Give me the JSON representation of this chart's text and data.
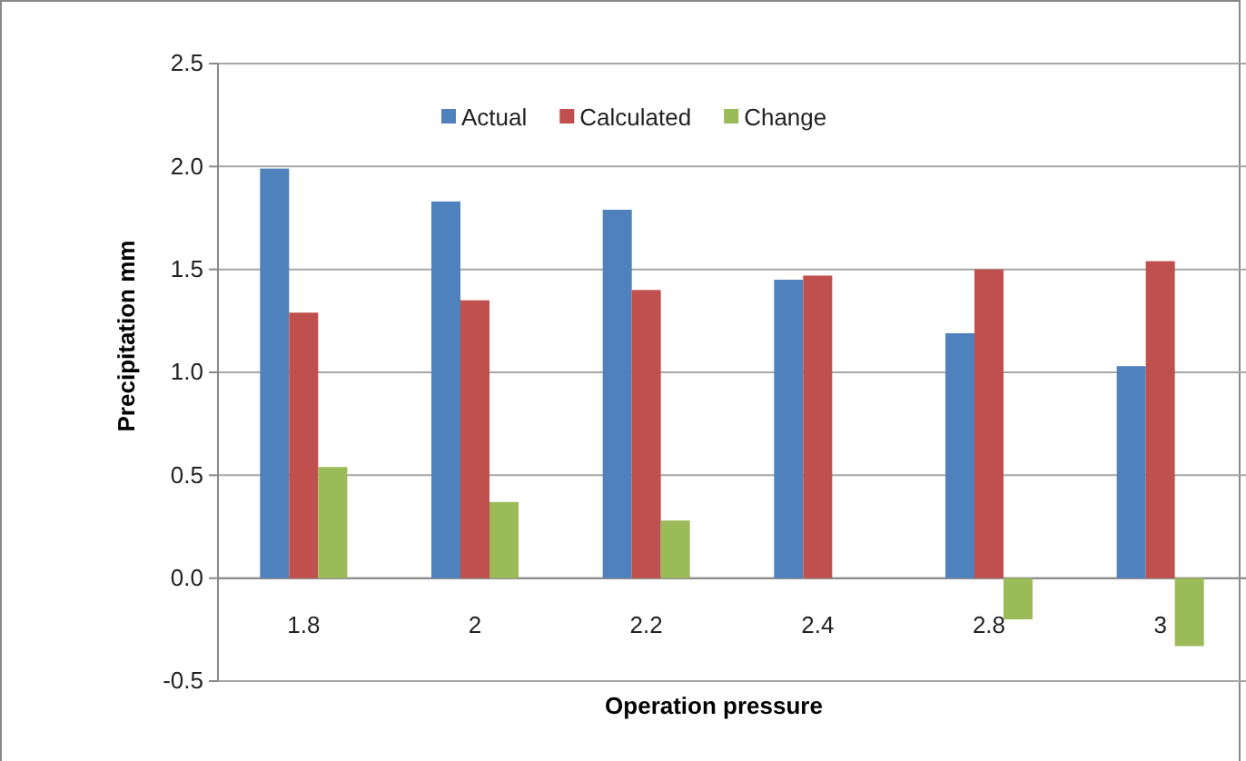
{
  "chart_data": {
    "type": "bar",
    "xlabel": "Operation pressure",
    "ylabel": "Precipitation mm",
    "categories": [
      "1.8",
      "2",
      "2.2",
      "2.4",
      "2.8",
      "3"
    ],
    "series": [
      {
        "name": "Actual",
        "color": "#4f81bd",
        "values": [
          1.99,
          1.83,
          1.79,
          1.45,
          1.19,
          1.03
        ]
      },
      {
        "name": "Calculated",
        "color": "#c0504d",
        "values": [
          1.29,
          1.35,
          1.4,
          1.47,
          1.5,
          1.54
        ]
      },
      {
        "name": "Change",
        "color": "#9bbb59",
        "values": [
          0.54,
          0.37,
          0.28,
          0,
          -0.2,
          -0.33
        ]
      }
    ],
    "ylim": [
      -0.5,
      2.5
    ],
    "yticks": [
      {
        "value": -0.5,
        "label": "-0.5"
      },
      {
        "value": 0,
        "label": "0.0"
      },
      {
        "value": 0.5,
        "label": "0.5"
      },
      {
        "value": 1,
        "label": "1.0"
      },
      {
        "value": 1.5,
        "label": "1.5"
      },
      {
        "value": 2,
        "label": "2.0"
      },
      {
        "value": 2.5,
        "label": "2.5"
      }
    ],
    "grid": "y",
    "legend": "top"
  }
}
